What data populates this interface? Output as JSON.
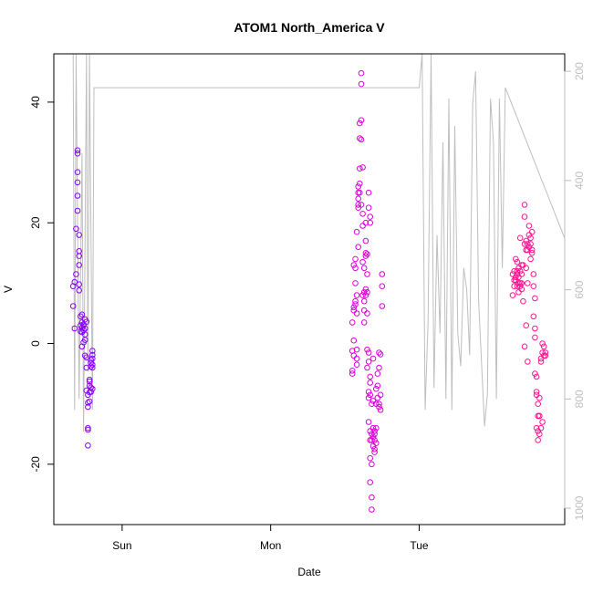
{
  "chart_data": {
    "type": "scatter",
    "title": "ATOM1 North_America V",
    "xlabel": "Date",
    "ylabel": "V",
    "x_ticks": [
      "Sun",
      "Mon",
      "Tue"
    ],
    "x_range_days": [
      -0.46,
      2.98
    ],
    "ylim": [
      -30,
      48
    ],
    "y_ticks": [
      -20,
      0,
      20,
      40
    ],
    "secondary_axis": {
      "ticks": [
        200,
        400,
        600,
        800,
        1000
      ],
      "range": [
        1030,
        168
      ],
      "inverted": true,
      "color": "#bebebe",
      "series_type": "line",
      "points": [
        [
          -0.3,
          170
        ],
        [
          -0.28,
          620
        ],
        [
          -0.27,
          780
        ],
        [
          -0.26,
          380
        ],
        [
          -0.25,
          790
        ],
        [
          -0.24,
          170
        ],
        [
          -0.22,
          350
        ],
        [
          -0.2,
          860
        ],
        [
          -0.19,
          170
        ],
        [
          -0.16,
          430
        ],
        [
          -0.14,
          800
        ],
        [
          -0.13,
          270
        ],
        [
          -0.12,
          340
        ],
        [
          -0.1,
          240
        ],
        [
          -0.09,
          720
        ],
        [
          -0.22,
          170
        ],
        [
          -0.23,
          640
        ],
        [
          -0.22,
          170
        ],
        [
          -0.21,
          170
        ],
        [
          -0.2,
          170
        ],
        [
          -0.18,
          170
        ],
        [
          -0.23,
          170
        ],
        [
          -0.22,
          170
        ],
        [
          -0.22,
          170
        ],
        [
          -0.22,
          170
        ],
        [
          -0.22,
          170
        ],
        [
          -0.22,
          170
        ]
      ],
      "line_main": [
        [
          -0.33,
          168
        ],
        [
          -0.32,
          820
        ],
        [
          -0.31,
          168
        ],
        [
          -0.29,
          800
        ],
        [
          -0.27,
          350
        ],
        [
          -0.26,
          860
        ],
        [
          -0.24,
          168
        ],
        [
          -0.23,
          750
        ],
        [
          -0.22,
          168
        ],
        [
          -0.2,
          820
        ],
        [
          -0.19,
          230
        ],
        [
          2.0,
          230
        ],
        [
          2.02,
          168
        ],
        [
          2.04,
          820
        ],
        [
          2.06,
          660
        ],
        [
          2.08,
          168
        ],
        [
          2.1,
          780
        ],
        [
          2.12,
          500
        ],
        [
          2.14,
          680
        ],
        [
          2.16,
          330
        ],
        [
          2.18,
          800
        ],
        [
          2.2,
          250
        ],
        [
          2.22,
          820
        ],
        [
          2.24,
          300
        ],
        [
          2.26,
          680
        ],
        [
          2.28,
          740
        ],
        [
          2.3,
          560
        ],
        [
          2.32,
          600
        ],
        [
          2.34,
          720
        ],
        [
          2.36,
          260
        ],
        [
          2.38,
          200
        ],
        [
          2.4,
          620
        ],
        [
          2.44,
          850
        ],
        [
          2.46,
          790
        ],
        [
          2.48,
          250
        ],
        [
          2.5,
          330
        ],
        [
          2.52,
          800
        ],
        [
          2.54,
          250
        ],
        [
          2.56,
          560
        ],
        [
          2.58,
          230
        ],
        [
          3.0,
          520
        ],
        [
          3.02,
          760
        ],
        [
          3.04,
          450
        ],
        [
          3.06,
          780
        ],
        [
          3.08,
          440
        ],
        [
          3.1,
          680
        ],
        [
          3.12,
          170
        ],
        [
          3.14,
          290
        ],
        [
          3.16,
          820
        ],
        [
          3.18,
          820
        ],
        [
          3.2,
          440
        ],
        [
          3.22,
          870
        ],
        [
          3.24,
          870
        ],
        [
          3.26,
          820
        ],
        [
          3.28,
          470
        ],
        [
          3.3,
          280
        ],
        [
          3.32,
          300
        ]
      ]
    },
    "series": [
      {
        "color": "#8B00FF",
        "points": [
          [
            -0.33,
            6.2
          ],
          [
            -0.33,
            9.5
          ],
          [
            -0.32,
            2.5
          ],
          [
            -0.32,
            10.2
          ],
          [
            -0.31,
            11.5
          ],
          [
            -0.31,
            19
          ],
          [
            -0.3,
            32
          ],
          [
            -0.3,
            31.5
          ],
          [
            -0.3,
            22
          ],
          [
            -0.3,
            24.5
          ],
          [
            -0.3,
            26.7
          ],
          [
            -0.3,
            28.4
          ],
          [
            -0.29,
            14.5
          ],
          [
            -0.29,
            15.3
          ],
          [
            -0.29,
            18
          ],
          [
            -0.29,
            13
          ],
          [
            -0.29,
            9.8
          ],
          [
            -0.29,
            8.8
          ],
          [
            -0.28,
            3.0
          ],
          [
            -0.28,
            4.5
          ],
          [
            -0.28,
            2.0
          ],
          [
            -0.27,
            3.5
          ],
          [
            -0.27,
            2.6
          ],
          [
            -0.27,
            4.8
          ],
          [
            -0.27,
            1.9
          ],
          [
            -0.27,
            -0.5
          ],
          [
            -0.26,
            0.2
          ],
          [
            -0.26,
            3.0
          ],
          [
            -0.26,
            2.2
          ],
          [
            -0.26,
            3.2
          ],
          [
            -0.25,
            2.5
          ],
          [
            -0.25,
            4.0
          ],
          [
            -0.25,
            0.6
          ],
          [
            -0.25,
            1.5
          ],
          [
            -0.25,
            -2.0
          ],
          [
            -0.24,
            -4.0
          ],
          [
            -0.24,
            -2.3
          ],
          [
            -0.24,
            3.6
          ],
          [
            -0.24,
            -7.8
          ],
          [
            -0.23,
            -8.5
          ],
          [
            -0.23,
            -9.8
          ],
          [
            -0.23,
            -10.5
          ],
          [
            -0.23,
            -14.0
          ],
          [
            -0.23,
            -14.3
          ],
          [
            -0.23,
            -16.9
          ],
          [
            -0.22,
            -6.0
          ],
          [
            -0.22,
            -7.0
          ],
          [
            -0.22,
            -6.3
          ],
          [
            -0.22,
            -8.1
          ],
          [
            -0.22,
            -9.6
          ],
          [
            -0.21,
            -2.7
          ],
          [
            -0.21,
            -3.2
          ],
          [
            -0.21,
            -3.8
          ],
          [
            -0.21,
            -7.3
          ],
          [
            -0.21,
            -8.0
          ],
          [
            -0.2,
            -1.2
          ],
          [
            -0.2,
            -1.9
          ],
          [
            -0.2,
            -2.5
          ],
          [
            -0.2,
            -3.5
          ],
          [
            -0.2,
            -4.0
          ],
          [
            -0.2,
            -7.5
          ]
        ]
      },
      {
        "color": "#DD00DD",
        "points": [
          [
            1.55,
            -4.5
          ],
          [
            1.55,
            -5.0
          ],
          [
            1.55,
            -1.2
          ],
          [
            1.55,
            3.5
          ],
          [
            1.56,
            -2.0
          ],
          [
            1.56,
            0.5
          ],
          [
            1.56,
            5.5
          ],
          [
            1.56,
            6.0
          ],
          [
            1.56,
            13.0
          ],
          [
            1.57,
            12.5
          ],
          [
            1.57,
            14.0
          ],
          [
            1.57,
            10.0
          ],
          [
            1.57,
            7.0
          ],
          [
            1.57,
            6.5
          ],
          [
            1.58,
            -1.0
          ],
          [
            1.58,
            -2.5
          ],
          [
            1.58,
            -3.5
          ],
          [
            1.58,
            5.0
          ],
          [
            1.58,
            8.0
          ],
          [
            1.58,
            18.5
          ],
          [
            1.59,
            22.5
          ],
          [
            1.59,
            24.0
          ],
          [
            1.59,
            25.0
          ],
          [
            1.59,
            26.0
          ],
          [
            1.59,
            23.0
          ],
          [
            1.59,
            16.0
          ],
          [
            1.6,
            26.5
          ],
          [
            1.6,
            25.0
          ],
          [
            1.6,
            29.0
          ],
          [
            1.6,
            34.0
          ],
          [
            1.6,
            36.5
          ],
          [
            1.61,
            37.0
          ],
          [
            1.61,
            43.0
          ],
          [
            1.61,
            44.8
          ],
          [
            1.61,
            33.8
          ],
          [
            1.61,
            23.0
          ],
          [
            1.62,
            29.2
          ],
          [
            1.62,
            21.5
          ],
          [
            1.62,
            19.5
          ],
          [
            1.62,
            13.5
          ],
          [
            1.62,
            8.0
          ],
          [
            1.63,
            12.5
          ],
          [
            1.63,
            8.5
          ],
          [
            1.63,
            7.0
          ],
          [
            1.63,
            5.5
          ],
          [
            1.63,
            3.5
          ],
          [
            1.64,
            20.0
          ],
          [
            1.64,
            17.0
          ],
          [
            1.64,
            15.0
          ],
          [
            1.64,
            9.0
          ],
          [
            1.64,
            8.0
          ],
          [
            1.65,
            11.5
          ],
          [
            1.65,
            8.5
          ],
          [
            1.65,
            5.0
          ],
          [
            1.65,
            -1.0
          ],
          [
            1.65,
            -4.0
          ],
          [
            1.66,
            -1.5
          ],
          [
            1.66,
            -3.0
          ],
          [
            1.66,
            -8.0
          ],
          [
            1.66,
            -9.0
          ],
          [
            1.66,
            -13.0
          ],
          [
            1.67,
            -5.5
          ],
          [
            1.67,
            -6.5
          ],
          [
            1.67,
            -8.5
          ],
          [
            1.67,
            -14.5
          ],
          [
            1.67,
            -16.0
          ],
          [
            1.67,
            -19.0
          ],
          [
            1.67,
            -23.0
          ],
          [
            1.68,
            -25.5
          ],
          [
            1.68,
            -27.5
          ],
          [
            1.68,
            -20.0
          ],
          [
            1.68,
            -16.0
          ],
          [
            1.68,
            -15.0
          ],
          [
            1.68,
            -10.0
          ],
          [
            1.69,
            -14.0
          ],
          [
            1.69,
            -15.5
          ],
          [
            1.69,
            -17.0
          ],
          [
            1.69,
            -2.5
          ],
          [
            1.69,
            -9.5
          ],
          [
            1.7,
            -14.5
          ],
          [
            1.7,
            -15.0
          ],
          [
            1.7,
            -16.0
          ],
          [
            1.7,
            -17.5
          ],
          [
            1.7,
            -18.0
          ],
          [
            1.71,
            -14.0
          ],
          [
            1.71,
            -16.5
          ],
          [
            1.71,
            -10.0
          ],
          [
            1.71,
            -7.5
          ],
          [
            1.72,
            -7.0
          ],
          [
            1.72,
            -5.0
          ],
          [
            1.72,
            -9.0
          ],
          [
            1.73,
            -1.5
          ],
          [
            1.73,
            -4.0
          ],
          [
            1.73,
            -10.5
          ],
          [
            1.73,
            -10.0
          ],
          [
            1.74,
            -8.5
          ],
          [
            1.74,
            -11.0
          ],
          [
            1.74,
            -1.8
          ],
          [
            1.75,
            6.2
          ],
          [
            1.75,
            9.5
          ],
          [
            1.75,
            11.5
          ],
          [
            1.66,
            22.5
          ],
          [
            1.66,
            25.0
          ],
          [
            1.67,
            21.0
          ],
          [
            1.67,
            20.0
          ],
          [
            1.64,
            14.5
          ],
          [
            1.65,
            14.8
          ]
        ]
      },
      {
        "color": "#FF1493",
        "points": [
          [
            2.63,
            11.5
          ],
          [
            2.63,
            8.0
          ],
          [
            2.64,
            10.5
          ],
          [
            2.64,
            12.0
          ],
          [
            2.64,
            9.5
          ],
          [
            2.65,
            14.0
          ],
          [
            2.65,
            11.0
          ],
          [
            2.65,
            10.5
          ],
          [
            2.66,
            13.5
          ],
          [
            2.66,
            12.0
          ],
          [
            2.66,
            11.5
          ],
          [
            2.66,
            9.5
          ],
          [
            2.67,
            12.5
          ],
          [
            2.67,
            11.0
          ],
          [
            2.67,
            10.0
          ],
          [
            2.67,
            8.5
          ],
          [
            2.68,
            17.5
          ],
          [
            2.68,
            12.0
          ],
          [
            2.68,
            10.0
          ],
          [
            2.68,
            9.5
          ],
          [
            2.69,
            13.0
          ],
          [
            2.69,
            11.5
          ],
          [
            2.69,
            10.0
          ],
          [
            2.69,
            9.0
          ],
          [
            2.7,
            7.0
          ],
          [
            2.7,
            13.0
          ],
          [
            2.71,
            16.5
          ],
          [
            2.71,
            21.0
          ],
          [
            2.71,
            23.0
          ],
          [
            2.72,
            17.0
          ],
          [
            2.72,
            15.5
          ],
          [
            2.72,
            12.5
          ],
          [
            2.73,
            10.0
          ],
          [
            2.73,
            15.5
          ],
          [
            2.73,
            16.5
          ],
          [
            2.74,
            18.0
          ],
          [
            2.74,
            19.5
          ],
          [
            2.74,
            16.0
          ],
          [
            2.75,
            14.0
          ],
          [
            2.75,
            16.5
          ],
          [
            2.75,
            17.5
          ],
          [
            2.76,
            18.5
          ],
          [
            2.76,
            15.5
          ],
          [
            2.76,
            15.0
          ],
          [
            2.77,
            11.5
          ],
          [
            2.77,
            9.5
          ],
          [
            2.77,
            4.5
          ],
          [
            2.78,
            7.5
          ],
          [
            2.78,
            2.5
          ],
          [
            2.78,
            1.0
          ],
          [
            2.79,
            -5.5
          ],
          [
            2.79,
            -8.5
          ],
          [
            2.79,
            -14.0
          ],
          [
            2.8,
            -12.0
          ],
          [
            2.8,
            -14.5
          ],
          [
            2.8,
            -16.0
          ],
          [
            2.81,
            -15.0
          ],
          [
            2.81,
            -12.0
          ],
          [
            2.81,
            -9.0
          ],
          [
            2.82,
            -2.5
          ],
          [
            2.82,
            -3.0
          ],
          [
            2.83,
            -1.5
          ],
          [
            2.83,
            0.0
          ],
          [
            2.84,
            -0.5
          ],
          [
            2.84,
            -2.0
          ],
          [
            2.85,
            -2.0
          ],
          [
            2.85,
            -1.5
          ],
          [
            2.71,
            -0.5
          ],
          [
            2.72,
            3.0
          ],
          [
            2.73,
            -3.0
          ],
          [
            2.78,
            -5.0
          ],
          [
            2.79,
            -8.0
          ],
          [
            2.8,
            -10.0
          ],
          [
            2.81,
            -12.0
          ],
          [
            2.82,
            -14.0
          ],
          [
            2.83,
            -13.0
          ]
        ]
      }
    ]
  }
}
